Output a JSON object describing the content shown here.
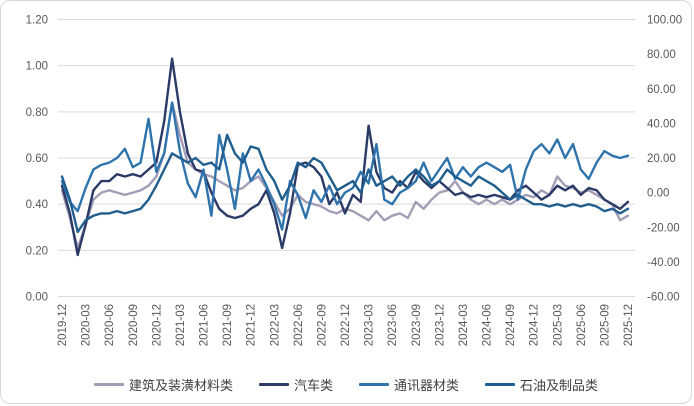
{
  "chart_data": {
    "type": "line",
    "title": "",
    "x_start": "2019-12",
    "x_end": "2025-12",
    "frequency": "monthly",
    "x_ticks": [
      "2019-12",
      "2020-03",
      "2020-06",
      "2020-09",
      "2020-12",
      "2021-03",
      "2021-06",
      "2021-09",
      "2021-12",
      "2022-03",
      "2022-06",
      "2022-09",
      "2022-12",
      "2023-03",
      "2023-06",
      "2023-09",
      "2023-12",
      "2024-03",
      "2024-06",
      "2024-09",
      "2024-12",
      "2025-03",
      "2025-06",
      "2025-09",
      "2025-12"
    ],
    "left_axis": {
      "min": 0,
      "max": 1.2,
      "ticks": [
        "1.20",
        "1.00",
        "0.80",
        "0.60",
        "0.40",
        "0.20",
        "0.00"
      ]
    },
    "right_axis": {
      "min": -60,
      "max": 100,
      "ticks": [
        "100.00",
        "80.00",
        "60.00",
        "40.00",
        "20.00",
        "0.00",
        "-20.00",
        "-40.00",
        "-60.00"
      ]
    },
    "grid": "horizontal",
    "legend_position": "bottom",
    "colors": {
      "grid": "#d9d9d9",
      "axis_text": "#595959"
    },
    "series": [
      {
        "name": "建筑及装潢材料类",
        "color": "#a39db6",
        "values": [
          0.46,
          0.34,
          0.21,
          0.31,
          0.42,
          0.45,
          0.46,
          0.45,
          0.44,
          0.45,
          0.46,
          0.48,
          0.52,
          0.62,
          0.84,
          0.7,
          0.58,
          0.55,
          0.53,
          0.52,
          0.5,
          0.48,
          0.46,
          0.47,
          0.5,
          0.52,
          0.47,
          0.41,
          0.35,
          0.38,
          0.44,
          0.41,
          0.4,
          0.39,
          0.37,
          0.36,
          0.38,
          0.37,
          0.35,
          0.33,
          0.37,
          0.33,
          0.35,
          0.36,
          0.34,
          0.41,
          0.38,
          0.42,
          0.45,
          0.46,
          0.5,
          0.45,
          0.42,
          0.4,
          0.42,
          0.4,
          0.42,
          0.4,
          0.42,
          0.44,
          0.43,
          0.46,
          0.44,
          0.52,
          0.48,
          0.47,
          0.45,
          0.46,
          0.44,
          0.42,
          0.4,
          0.33,
          0.35
        ]
      },
      {
        "name": "汽车类",
        "color": "#2b3a66",
        "values": [
          0.48,
          0.36,
          0.18,
          0.31,
          0.46,
          0.5,
          0.5,
          0.53,
          0.52,
          0.53,
          0.52,
          0.55,
          0.58,
          0.76,
          1.03,
          0.8,
          0.62,
          0.55,
          0.54,
          0.45,
          0.38,
          0.35,
          0.34,
          0.35,
          0.38,
          0.4,
          0.46,
          0.36,
          0.21,
          0.36,
          0.57,
          0.58,
          0.56,
          0.52,
          0.4,
          0.45,
          0.36,
          0.44,
          0.41,
          0.74,
          0.54,
          0.47,
          0.45,
          0.5,
          0.47,
          0.54,
          0.5,
          0.47,
          0.5,
          0.47,
          0.44,
          0.45,
          0.43,
          0.44,
          0.43,
          0.44,
          0.43,
          0.42,
          0.46,
          0.48,
          0.45,
          0.42,
          0.44,
          0.48,
          0.46,
          0.48,
          0.44,
          0.47,
          0.46,
          0.42,
          0.4,
          0.38,
          0.41
        ]
      },
      {
        "name": "通讯器材类",
        "color": "#2f73ad",
        "values": [
          0.5,
          0.41,
          0.37,
          0.47,
          0.55,
          0.57,
          0.58,
          0.6,
          0.64,
          0.56,
          0.58,
          0.77,
          0.54,
          0.62,
          0.84,
          0.63,
          0.49,
          0.43,
          0.55,
          0.35,
          0.7,
          0.55,
          0.38,
          0.62,
          0.5,
          0.55,
          0.48,
          0.4,
          0.29,
          0.5,
          0.44,
          0.34,
          0.46,
          0.41,
          0.48,
          0.4,
          0.45,
          0.47,
          0.54,
          0.49,
          0.66,
          0.42,
          0.4,
          0.45,
          0.47,
          0.5,
          0.58,
          0.5,
          0.55,
          0.6,
          0.51,
          0.56,
          0.52,
          0.56,
          0.58,
          0.56,
          0.54,
          0.57,
          0.42,
          0.55,
          0.63,
          0.66,
          0.62,
          0.68,
          0.6,
          0.66,
          0.55,
          0.51,
          0.58,
          0.63,
          0.61,
          0.6,
          0.61
        ]
      },
      {
        "name": "石油及制品类",
        "color": "#1f5e8e",
        "values": [
          0.52,
          0.42,
          0.28,
          0.33,
          0.35,
          0.36,
          0.36,
          0.37,
          0.36,
          0.37,
          0.38,
          0.42,
          0.48,
          0.55,
          0.62,
          0.6,
          0.58,
          0.6,
          0.57,
          0.58,
          0.55,
          0.7,
          0.62,
          0.58,
          0.65,
          0.64,
          0.55,
          0.5,
          0.42,
          0.48,
          0.58,
          0.56,
          0.6,
          0.58,
          0.52,
          0.46,
          0.48,
          0.5,
          0.45,
          0.55,
          0.48,
          0.5,
          0.52,
          0.48,
          0.52,
          0.55,
          0.52,
          0.48,
          0.5,
          0.55,
          0.52,
          0.5,
          0.48,
          0.52,
          0.5,
          0.48,
          0.45,
          0.42,
          0.44,
          0.42,
          0.4,
          0.4,
          0.39,
          0.4,
          0.39,
          0.4,
          0.39,
          0.4,
          0.39,
          0.37,
          0.38,
          0.36,
          0.38
        ]
      }
    ]
  },
  "legend": {
    "items": [
      "建筑及装潢材料类",
      "汽车类",
      "通讯器材类",
      "石油及制品类"
    ]
  }
}
